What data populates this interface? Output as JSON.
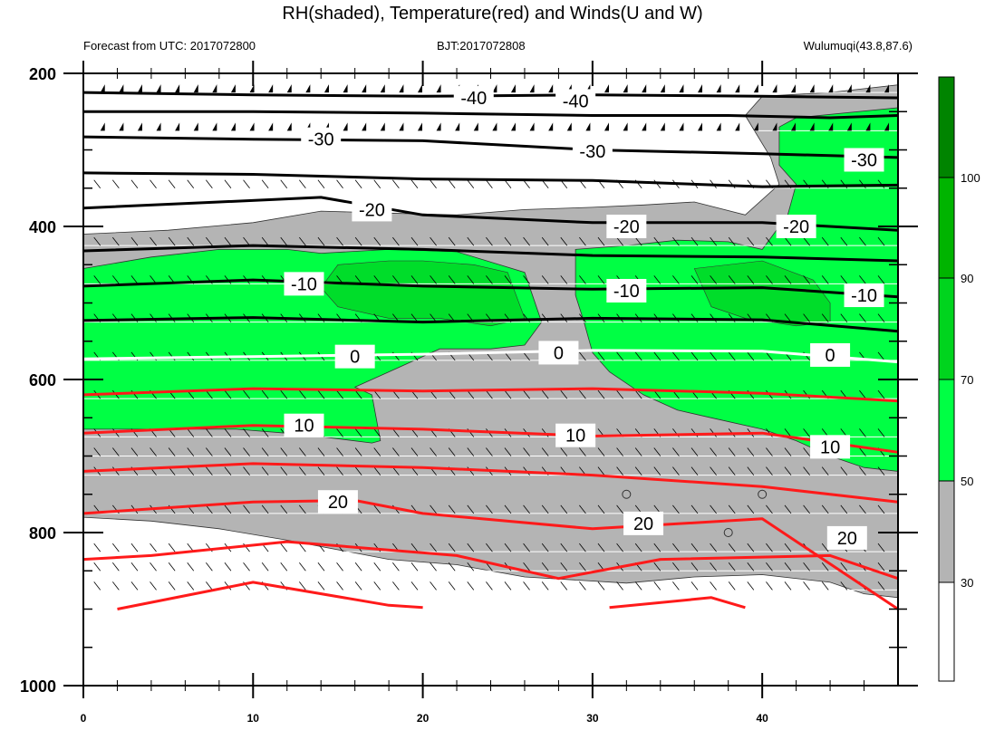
{
  "title": "RH(shaded), Temperature(red) and Winds(U and W)",
  "header": {
    "forecast": "Forecast from UTC: 2017072800",
    "bjt": "BJT:2017072808",
    "station": "Wulumuqi(43.8,87.6)"
  },
  "chart_data": {
    "type": "heatmap",
    "title": "RH(shaded), Temperature(red) and Winds(U and W)",
    "x_range": [
      0,
      48
    ],
    "y_range": [
      200,
      1000
    ],
    "y_reversed": true,
    "x_ticks": [
      0,
      10,
      20,
      30,
      40
    ],
    "y_ticks": [
      200,
      400,
      600,
      800,
      1000
    ],
    "y_minor_ticks": [
      250,
      300,
      350,
      450,
      500,
      550,
      650,
      700,
      750,
      850,
      900,
      950
    ],
    "rh_colorbar": {
      "labels": [
        "30",
        "50",
        "70",
        "90",
        "100"
      ],
      "levels": [
        30,
        50,
        70,
        90,
        100
      ],
      "colors": [
        "#ffffff",
        "#b4b4b4",
        "#00ff44",
        "#00d41e",
        "#00b400",
        "#008400"
      ]
    },
    "colors": {
      "temp_cold": "#000000",
      "temp_zero": "#ffffff",
      "temp_warm": "#ff1a1a",
      "rh_50_70": "#b4b4b4",
      "rh_70_90": "#00ff44",
      "rh_90_100": "#00dd2a"
    },
    "wind_levels": [
      225,
      275,
      350,
      425,
      475,
      525,
      575,
      625,
      675,
      700,
      725,
      775,
      825,
      850,
      875
    ],
    "temperature_contours": [
      {
        "value": -40,
        "label": "-40",
        "color": "black",
        "points": [
          [
            0,
            225
          ],
          [
            10,
            228
          ],
          [
            20,
            230
          ],
          [
            30,
            228
          ],
          [
            40,
            230
          ],
          [
            48,
            232
          ]
        ],
        "labels_at": [
          [
            23,
            232
          ],
          [
            29,
            236
          ]
        ]
      },
      {
        "value": -35,
        "label": "",
        "color": "black",
        "points": [
          [
            0,
            250
          ],
          [
            10,
            250
          ],
          [
            20,
            252
          ],
          [
            30,
            255
          ],
          [
            38,
            255
          ],
          [
            44,
            258
          ],
          [
            48,
            255
          ]
        ],
        "labels_at": []
      },
      {
        "value": -30,
        "label": "-30",
        "color": "black",
        "points": [
          [
            0,
            283
          ],
          [
            10,
            286
          ],
          [
            20,
            288
          ],
          [
            30,
            300
          ],
          [
            40,
            305
          ],
          [
            48,
            310
          ]
        ],
        "labels_at": [
          [
            14,
            286
          ],
          [
            30,
            302
          ],
          [
            46,
            313
          ]
        ]
      },
      {
        "value": -25,
        "label": "",
        "color": "black",
        "points": [
          [
            0,
            330
          ],
          [
            10,
            332
          ],
          [
            20,
            338
          ],
          [
            30,
            340
          ],
          [
            40,
            348
          ],
          [
            48,
            346
          ]
        ],
        "labels_at": []
      },
      {
        "value": -20,
        "label": "-20",
        "color": "black",
        "points": [
          [
            0,
            376
          ],
          [
            8,
            368
          ],
          [
            14,
            362
          ],
          [
            20,
            385
          ],
          [
            30,
            395
          ],
          [
            40,
            395
          ],
          [
            48,
            405
          ]
        ],
        "labels_at": [
          [
            17,
            378
          ],
          [
            32,
            400
          ],
          [
            42,
            400
          ]
        ]
      },
      {
        "value": -15,
        "label": "",
        "color": "black",
        "points": [
          [
            0,
            432
          ],
          [
            10,
            425
          ],
          [
            20,
            430
          ],
          [
            30,
            438
          ],
          [
            40,
            440
          ],
          [
            48,
            445
          ]
        ],
        "labels_at": []
      },
      {
        "value": -10,
        "label": "-10",
        "color": "black",
        "points": [
          [
            0,
            478
          ],
          [
            10,
            470
          ],
          [
            20,
            478
          ],
          [
            30,
            482
          ],
          [
            40,
            480
          ],
          [
            48,
            492
          ]
        ],
        "labels_at": [
          [
            13,
            475
          ],
          [
            32,
            484
          ],
          [
            46,
            490
          ]
        ]
      },
      {
        "value": -5,
        "label": "",
        "color": "black",
        "points": [
          [
            0,
            523
          ],
          [
            10,
            519
          ],
          [
            20,
            525
          ],
          [
            30,
            520
          ],
          [
            40,
            522
          ],
          [
            48,
            537
          ]
        ],
        "labels_at": []
      },
      {
        "value": 0,
        "label": "0",
        "color": "white",
        "points": [
          [
            0,
            573
          ],
          [
            10,
            570
          ],
          [
            20,
            567
          ],
          [
            30,
            562
          ],
          [
            40,
            563
          ],
          [
            48,
            577
          ]
        ],
        "labels_at": [
          [
            16,
            570
          ],
          [
            28,
            565
          ],
          [
            44,
            568
          ]
        ]
      },
      {
        "value": 5,
        "label": "",
        "color": "red",
        "points": [
          [
            0,
            620
          ],
          [
            10,
            612
          ],
          [
            20,
            615
          ],
          [
            30,
            612
          ],
          [
            40,
            618
          ],
          [
            48,
            628
          ]
        ],
        "labels_at": []
      },
      {
        "value": 10,
        "label": "10",
        "color": "red",
        "points": [
          [
            0,
            670
          ],
          [
            10,
            660
          ],
          [
            20,
            665
          ],
          [
            30,
            674
          ],
          [
            40,
            670
          ],
          [
            48,
            695
          ]
        ],
        "labels_at": [
          [
            13,
            660
          ],
          [
            29,
            673
          ],
          [
            44,
            688
          ]
        ]
      },
      {
        "value": 15,
        "label": "",
        "color": "red",
        "points": [
          [
            0,
            720
          ],
          [
            10,
            710
          ],
          [
            20,
            715
          ],
          [
            30,
            725
          ],
          [
            40,
            740
          ],
          [
            48,
            760
          ]
        ],
        "labels_at": []
      },
      {
        "value": 20,
        "label": "20",
        "color": "red",
        "points": [
          [
            0,
            775
          ],
          [
            10,
            760
          ],
          [
            16,
            758
          ],
          [
            20,
            775
          ],
          [
            30,
            795
          ],
          [
            40,
            782
          ],
          [
            48,
            900
          ]
        ],
        "labels_at": [
          [
            15,
            760
          ],
          [
            33,
            788
          ],
          [
            45,
            807
          ]
        ]
      },
      {
        "value": 25,
        "label": "",
        "color": "red",
        "points": [
          [
            0,
            835
          ],
          [
            4,
            830
          ],
          [
            12,
            812
          ],
          [
            22,
            830
          ],
          [
            28,
            860
          ],
          [
            34,
            835
          ],
          [
            44,
            830
          ],
          [
            48,
            860
          ]
        ],
        "labels_at": []
      },
      {
        "value": 30,
        "label": "",
        "color": "red",
        "points": [
          [
            2,
            900
          ],
          [
            10,
            865
          ],
          [
            18,
            895
          ],
          [
            20,
            898
          ]
        ],
        "labels_at": []
      },
      {
        "value": 30,
        "label": "",
        "color": "red",
        "points": [
          [
            31,
            898
          ],
          [
            37,
            885
          ],
          [
            39,
            898
          ]
        ],
        "labels_at": []
      }
    ]
  }
}
